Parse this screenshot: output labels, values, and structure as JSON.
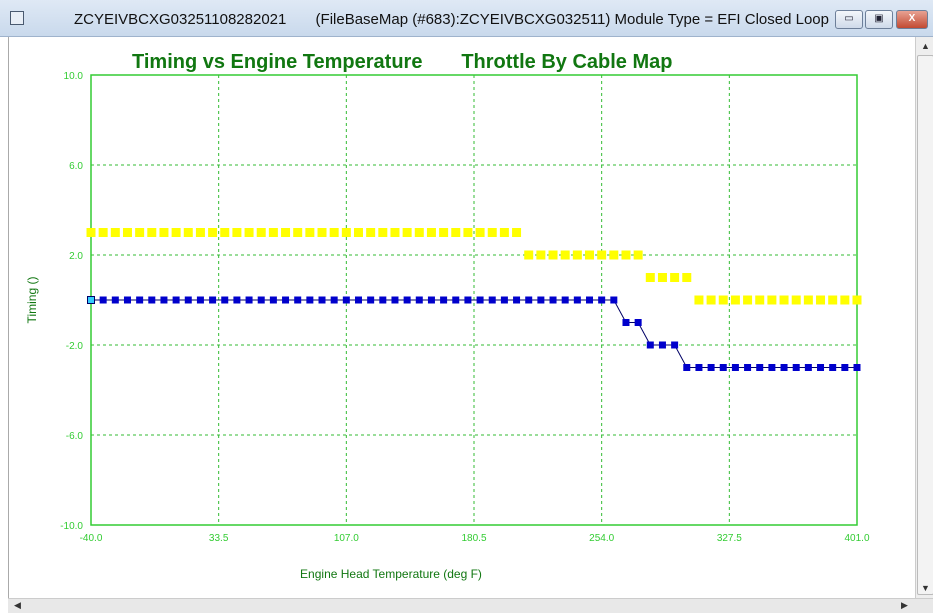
{
  "window": {
    "title": "ZCYEIVBCXG03251108282021       (FileBaseMap (#683):ZCYEIVBCXG032511) Module Type = EFI Closed Loop",
    "minimize_label": "▭",
    "maximize_label": "▣",
    "close_label": "X"
  },
  "colors": {
    "axis": "#33cc33",
    "title": "#117711",
    "grid": "#33bb33",
    "series1": "#ffff00",
    "series2": "#0000cc",
    "selected": "#33ccff"
  },
  "chart_data": {
    "type": "scatter",
    "title": "Timing vs Engine Temperature       Throttle By Cable Map",
    "xlabel": "Engine Head Temperature (deg F)",
    "ylabel": "Timing ()",
    "xlim": [
      -40.0,
      401.0
    ],
    "ylim": [
      -10.0,
      10.0
    ],
    "xticks": [
      "-40.0",
      "33.5",
      "107.0",
      "180.5",
      "254.0",
      "327.5",
      "401.0"
    ],
    "yticks": [
      "10.0",
      "6.0",
      "2.0",
      "-2.0",
      "-6.0",
      "-10.0"
    ],
    "grid": true,
    "x_start": -40,
    "x_step": 7,
    "series": [
      {
        "name": "yellow",
        "style": "markers",
        "values": [
          3,
          3,
          3,
          3,
          3,
          3,
          3,
          3,
          3,
          3,
          3,
          3,
          3,
          3,
          3,
          3,
          3,
          3,
          3,
          3,
          3,
          3,
          3,
          3,
          3,
          3,
          3,
          3,
          3,
          3,
          3,
          3,
          3,
          3,
          3,
          3,
          2,
          2,
          2,
          2,
          2,
          2,
          2,
          2,
          2,
          2,
          1,
          1,
          1,
          1,
          0,
          0,
          0,
          0,
          0,
          0,
          0,
          0,
          0,
          0,
          0,
          0,
          0,
          0
        ]
      },
      {
        "name": "blue",
        "style": "line-markers",
        "selected_index": 0,
        "values": [
          0,
          0,
          0,
          0,
          0,
          0,
          0,
          0,
          0,
          0,
          0,
          0,
          0,
          0,
          0,
          0,
          0,
          0,
          0,
          0,
          0,
          0,
          0,
          0,
          0,
          0,
          0,
          0,
          0,
          0,
          0,
          0,
          0,
          0,
          0,
          0,
          0,
          0,
          0,
          0,
          0,
          0,
          0,
          0,
          -1,
          -1,
          -2,
          -2,
          -2,
          -3,
          -3,
          -3,
          -3,
          -3,
          -3,
          -3,
          -3,
          -3,
          -3,
          -3,
          -3,
          -3,
          -3,
          -3
        ]
      }
    ]
  }
}
